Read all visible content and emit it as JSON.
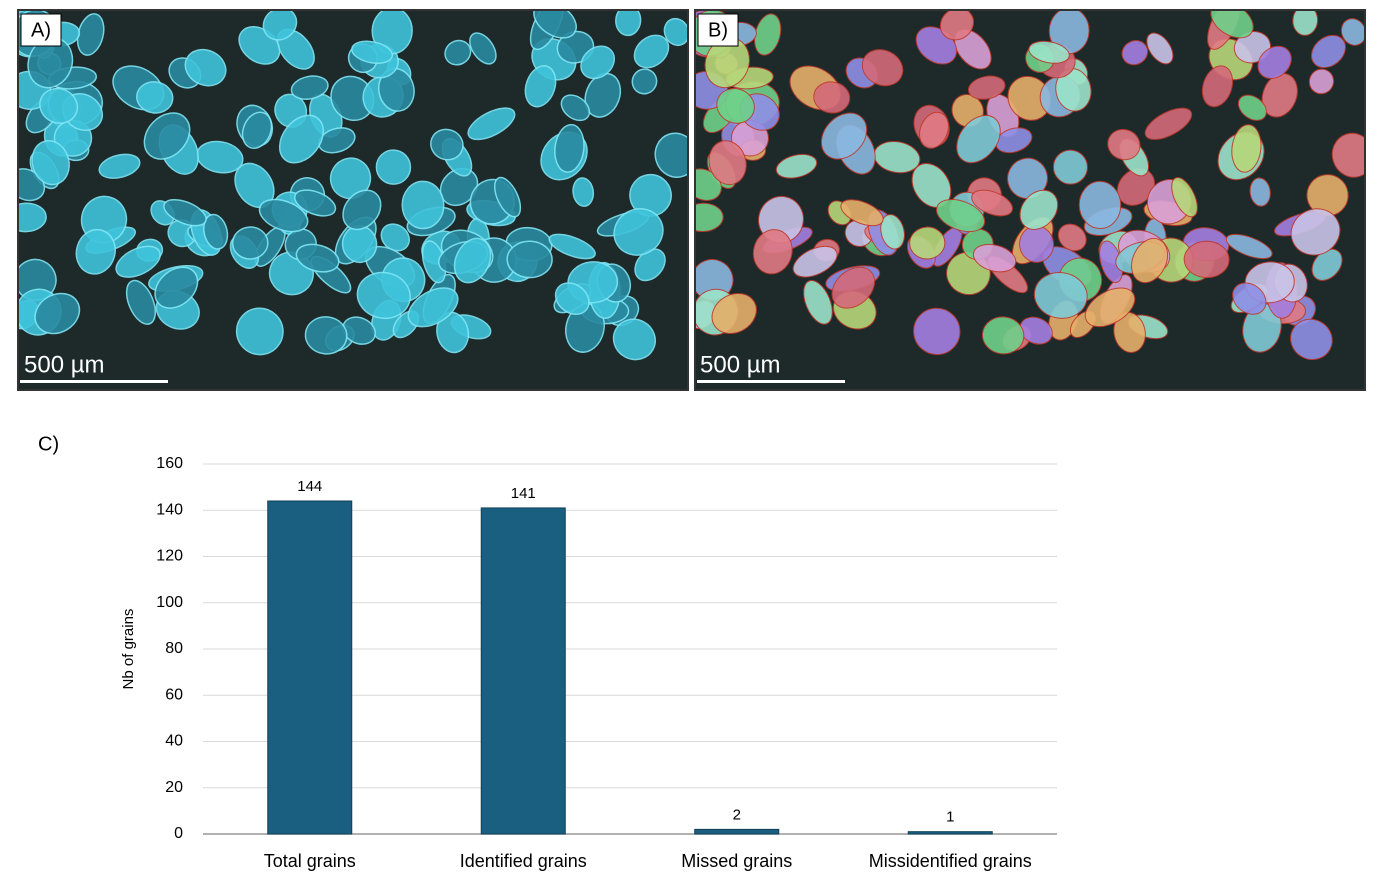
{
  "panels": [
    {
      "label": "A)",
      "scale_bar": "500 µm"
    },
    {
      "label": "B)",
      "scale_bar": "500 µm"
    }
  ],
  "chart_data": {
    "type": "bar",
    "panel_label": "C)",
    "y_label": "Nb of grains",
    "categories": [
      "Total grains",
      "Identified grains",
      "Missed grains",
      "Missidentified grains"
    ],
    "values": [
      144,
      141,
      2,
      1
    ],
    "color": "#1a5f80",
    "ylim": [
      0,
      160
    ],
    "yticks": [
      0,
      20,
      40,
      60,
      80,
      100,
      120,
      140,
      160
    ],
    "grid": true
  }
}
